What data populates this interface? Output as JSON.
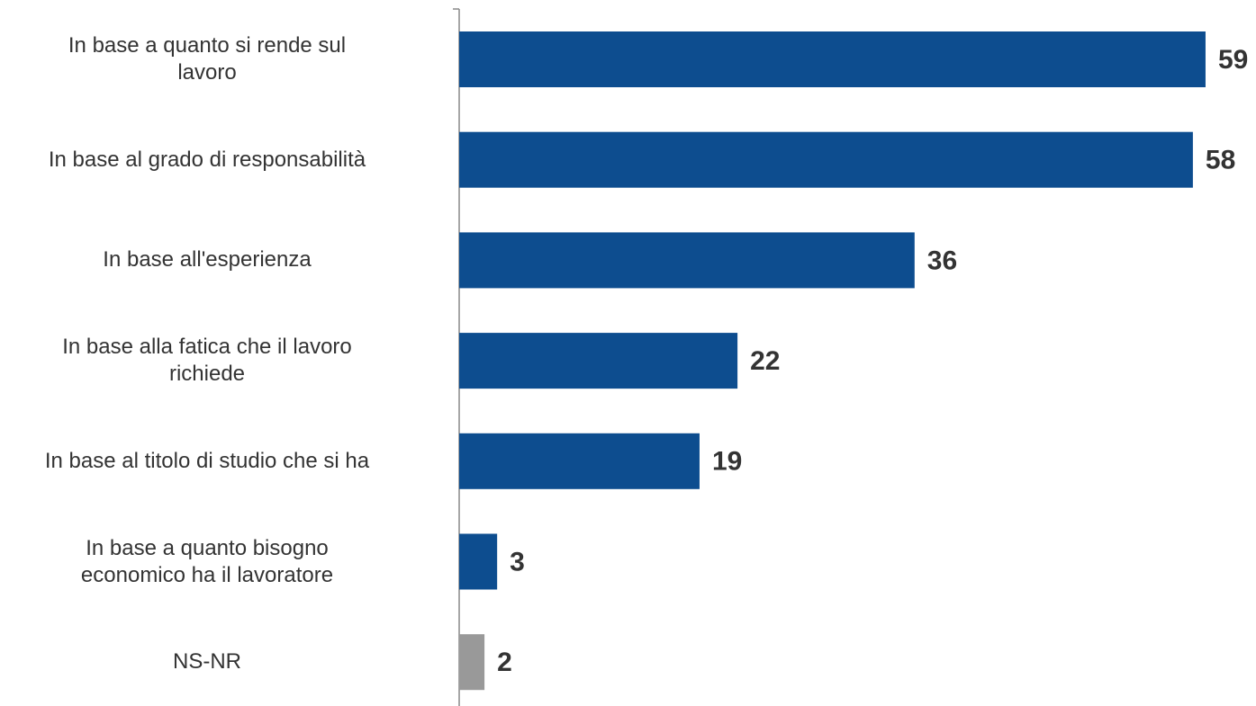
{
  "chart_data": {
    "type": "bar",
    "orientation": "horizontal",
    "categories": [
      "In base a quanto si rende sul\nlavoro",
      "In base al grado di responsabilità",
      "In base all'esperienza",
      "In base alla fatica che il lavoro\nrichiede",
      "In base al titolo di studio che si ha",
      "In base a quanto bisogno\neconomico ha il lavoratore",
      "NS-NR"
    ],
    "values": [
      59,
      58,
      36,
      22,
      19,
      3,
      2
    ],
    "colors": [
      "#0d4d8f",
      "#0d4d8f",
      "#0d4d8f",
      "#0d4d8f",
      "#0d4d8f",
      "#0d4d8f",
      "#999999"
    ]
  }
}
